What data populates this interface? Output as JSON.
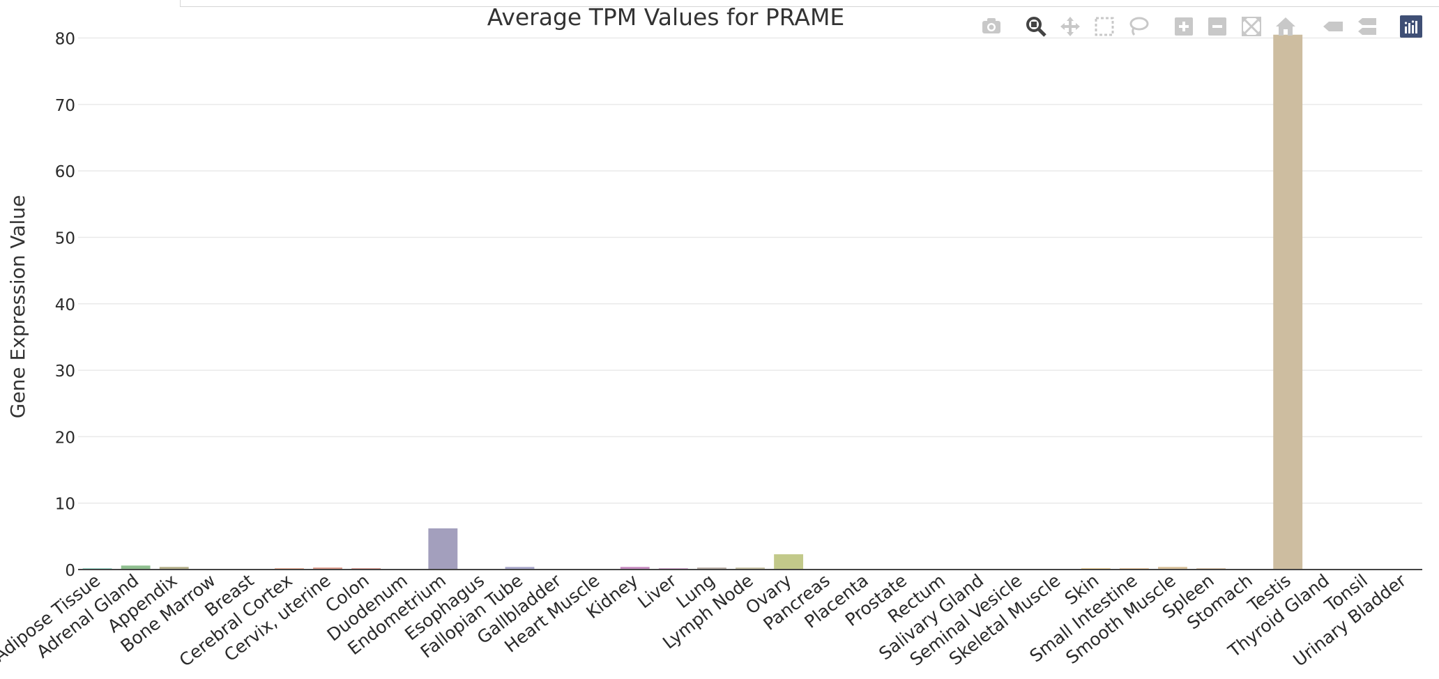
{
  "modebar": [
    {
      "name": "camera-icon",
      "active": false
    },
    {
      "name": "zoom-icon",
      "active": true
    },
    {
      "name": "pan-icon",
      "active": false
    },
    {
      "name": "box-select-icon",
      "active": false
    },
    {
      "name": "lasso-select-icon",
      "active": false
    },
    {
      "name": "zoom-in-icon",
      "active": false
    },
    {
      "name": "zoom-out-icon",
      "active": false
    },
    {
      "name": "autoscale-icon",
      "active": false
    },
    {
      "name": "reset-axes-icon",
      "active": false
    },
    {
      "name": "spike-lines-icon",
      "active": false
    },
    {
      "name": "compare-hover-icon",
      "active": false
    },
    {
      "name": "plotly-logo-icon",
      "active": false
    }
  ],
  "colors": {
    "modebar_icon": "#c8c8c8",
    "modebar_active": "#444444",
    "plotly_logo": "#3f4f75",
    "grid": "#e9e9e9",
    "axis_text": "#2a2a2a"
  },
  "chart_data": {
    "type": "bar",
    "title": "Average TPM Values for PRAME",
    "xlabel": "",
    "ylabel": "Gene Expression Value",
    "ylim": [
      0,
      81
    ],
    "yticks": [
      0,
      10,
      20,
      30,
      40,
      50,
      60,
      70,
      80
    ],
    "grid": true,
    "legend": "none",
    "categories": [
      "Adipose Tissue",
      "Adrenal Gland",
      "Appendix",
      "Bone Marrow",
      "Breast",
      "Cerebral Cortex",
      "Cervix, uterine",
      "Colon",
      "Duodenum",
      "Endometrium",
      "Esophagus",
      "Fallopian Tube",
      "Gallbladder",
      "Heart Muscle",
      "Kidney",
      "Liver",
      "Lung",
      "Lymph Node",
      "Ovary",
      "Pancreas",
      "Placenta",
      "Prostate",
      "Rectum",
      "Salivary Gland",
      "Seminal Vesicle",
      "Skeletal Muscle",
      "Skin",
      "Small Intestine",
      "Smooth Muscle",
      "Spleen",
      "Stomach",
      "Testis",
      "Thyroid Gland",
      "Tonsil",
      "Urinary Bladder"
    ],
    "values": [
      0.2,
      0.6,
      0.4,
      0,
      0.1,
      0.2,
      0.3,
      0.2,
      0.1,
      6.2,
      0,
      0.4,
      0,
      0,
      0.4,
      0.2,
      0.3,
      0.3,
      2.3,
      0,
      0.1,
      0,
      0,
      0,
      0.1,
      0,
      0.2,
      0.2,
      0.4,
      0.2,
      0,
      80.5,
      0,
      0.1,
      0
    ],
    "colors": [
      "#8fd3c4",
      "#8fbf8f",
      "#b5b08a",
      "#c9a3b7",
      "#e8a88f",
      "#e8a48a",
      "#d99585",
      "#d98f85",
      "#c7a6b8",
      "#a39fbd",
      "#9fb0c7",
      "#a9a8cb",
      "#c6a3c8",
      "#d8a0c4",
      "#c68bc0",
      "#c797c2",
      "#b4a9a0",
      "#c5bfa0",
      "#c2c98a",
      "#b6c98a",
      "#c2d39a",
      "#d2d38f",
      "#e6d48a",
      "#e8d88a",
      "#ecd58c",
      "#eed99a",
      "#e8c98a",
      "#e6bf8f",
      "#d8c09a",
      "#d6bfa0",
      "#cbbfa5",
      "#cdbda0",
      "#c8bfaa",
      "#c6c0b0",
      "#bfbfbf"
    ]
  }
}
